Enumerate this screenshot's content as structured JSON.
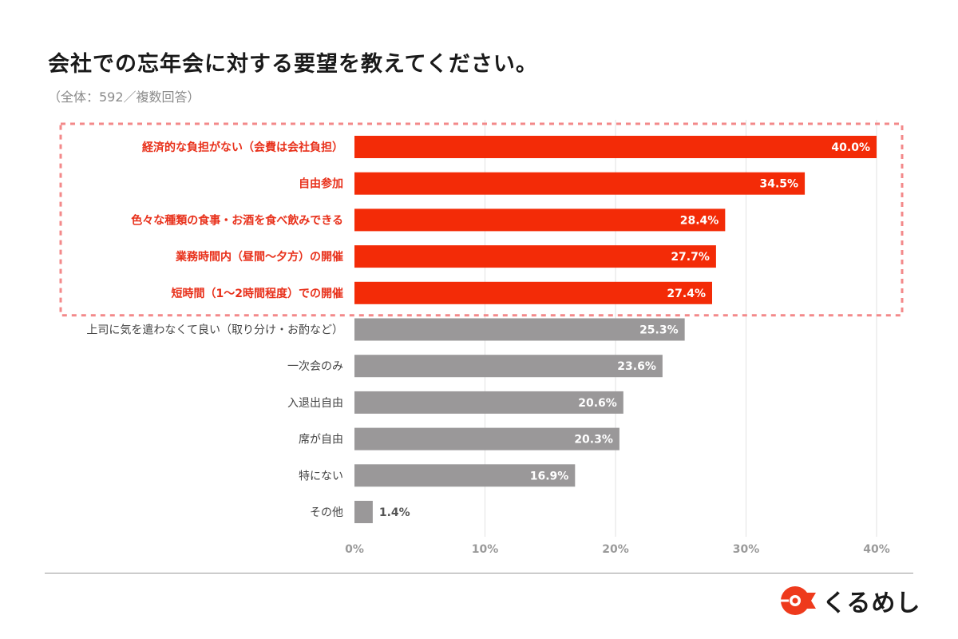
{
  "title": "会社での忘年会に対する要望を教えてください。",
  "subtitle": "（全体：592／複数回答）",
  "brand": {
    "name": "くるめし",
    "color": "#ee3a1c"
  },
  "colors": {
    "highlight": "#f32b07",
    "normal": "#9a9899",
    "highlight_label": "#e8301a",
    "normal_label": "#444444",
    "dashed_box": "#f3898a"
  },
  "chart_data": {
    "type": "bar",
    "orientation": "horizontal",
    "title": "会社での忘年会に対する要望を教えてください。",
    "xlim": [
      0,
      40
    ],
    "xticks": [
      "0%",
      "10%",
      "20%",
      "30%",
      "40%"
    ],
    "xtick_values": [
      0,
      10,
      20,
      30,
      40
    ],
    "grid": true,
    "highlight_count": 5,
    "categories": [
      "経済的な負担がない（会費は会社負担）",
      "自由参加",
      "色々な種類の食事・お酒を食べ飲みできる",
      "業務時間内（昼間〜夕方）の開催",
      "短時間（1〜2時間程度）での開催",
      "上司に気を遣わなくて良い（取り分け・お酌など）",
      "一次会のみ",
      "入退出自由",
      "席が自由",
      "特にない",
      "その他"
    ],
    "values": [
      40.0,
      34.5,
      28.4,
      27.7,
      27.4,
      25.3,
      23.6,
      20.6,
      20.3,
      16.9,
      1.4
    ],
    "value_labels": [
      "40.0%",
      "34.5%",
      "28.4%",
      "27.7%",
      "27.4%",
      "25.3%",
      "23.6%",
      "20.6%",
      "20.3%",
      "16.9%",
      "1.4%"
    ]
  }
}
